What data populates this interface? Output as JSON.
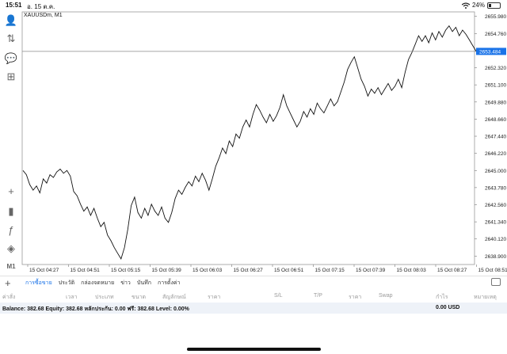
{
  "status_bar": {
    "time": "15:51",
    "date": "อ. 15 ต.ค.",
    "battery": "24%",
    "battery_level": 0.24
  },
  "left_toolbar": {
    "items": [
      {
        "name": "account-icon",
        "glyph": "👤"
      },
      {
        "name": "trade-icon",
        "glyph": "⇅"
      },
      {
        "name": "chat-icon",
        "glyph": "💬"
      },
      {
        "name": "add-document-icon",
        "glyph": "⊞"
      },
      {
        "name": "crosshair-icon",
        "glyph": "+"
      },
      {
        "name": "candlestick-icon",
        "glyph": "▮"
      },
      {
        "name": "indicator-icon",
        "glyph": "ƒ"
      },
      {
        "name": "objects-icon",
        "glyph": "◈"
      },
      {
        "name": "timeframe-button",
        "glyph": "M1"
      }
    ]
  },
  "chart": {
    "symbol_label": "XAUUSDm, M1",
    "current_price": "2653.484",
    "current_price_color": "#1a73e8",
    "line_color": "#111111",
    "grid": false
  },
  "chart_data": {
    "type": "line",
    "title": "XAUUSDm, M1",
    "xlabel": "",
    "ylabel": "",
    "x_ticks": [
      "15 Oct 04:27",
      "15 Oct 04:51",
      "15 Oct 05:15",
      "15 Oct 05:39",
      "15 Oct 06:03",
      "15 Oct 06:27",
      "15 Oct 06:51",
      "15 Oct 07:15",
      "15 Oct 07:39",
      "15 Oct 08:03",
      "15 Oct 08:27",
      "15 Oct 08:51"
    ],
    "y_ticks": [
      "2655.980",
      "2654.760",
      "2653.484",
      "2652.320",
      "2651.100",
      "2649.880",
      "2648.660",
      "2647.440",
      "2646.220",
      "2645.000",
      "2643.780",
      "2642.560",
      "2641.340",
      "2640.120",
      "2638.900"
    ],
    "ylim": [
      2638.3,
      2656.3
    ],
    "series": [
      {
        "values": [
          2645.0,
          2644.7,
          2644.0,
          2643.6,
          2643.9,
          2643.4,
          2644.4,
          2644.1,
          2644.7,
          2644.5,
          2644.9,
          2645.1,
          2644.8,
          2645.0,
          2644.6,
          2643.5,
          2643.2,
          2642.6,
          2642.1,
          2642.4,
          2641.8,
          2642.3,
          2641.6,
          2641.0,
          2641.3,
          2640.4,
          2640.0,
          2639.5,
          2639.1,
          2638.7,
          2639.5,
          2640.8,
          2642.5,
          2643.1,
          2642.0,
          2641.6,
          2642.3,
          2641.8,
          2642.6,
          2642.1,
          2641.8,
          2642.4,
          2641.6,
          2641.3,
          2642.0,
          2643.0,
          2643.6,
          2643.3,
          2643.8,
          2644.2,
          2643.9,
          2644.6,
          2644.2,
          2644.8,
          2644.3,
          2643.6,
          2644.4,
          2645.3,
          2645.9,
          2646.6,
          2646.2,
          2647.1,
          2646.7,
          2647.6,
          2647.3,
          2648.1,
          2648.6,
          2648.1,
          2649.0,
          2649.7,
          2649.3,
          2648.8,
          2648.4,
          2649.0,
          2648.5,
          2648.9,
          2649.5,
          2650.4,
          2649.6,
          2649.1,
          2648.6,
          2648.1,
          2648.5,
          2649.2,
          2648.8,
          2649.4,
          2649.0,
          2649.8,
          2649.4,
          2649.1,
          2649.6,
          2650.1,
          2649.6,
          2649.9,
          2650.6,
          2651.3,
          2652.2,
          2652.7,
          2653.1,
          2652.3,
          2651.5,
          2651.0,
          2650.3,
          2650.8,
          2650.5,
          2650.9,
          2650.4,
          2650.8,
          2651.2,
          2650.7,
          2651.0,
          2651.5,
          2650.9,
          2652.0,
          2652.9,
          2653.4,
          2654.0,
          2654.6,
          2654.2,
          2654.6,
          2654.1,
          2654.8,
          2654.3,
          2654.9,
          2654.5,
          2655.0,
          2655.3,
          2654.9,
          2655.2,
          2654.6,
          2655.0,
          2654.7,
          2654.3,
          2653.9,
          2653.5
        ]
      }
    ]
  },
  "bottom_panel": {
    "tabs": [
      {
        "label": "การซื้อขาย",
        "active": true
      },
      {
        "label": "ประวัติ",
        "active": false
      },
      {
        "label": "กล่องจดหมาย",
        "active": false
      },
      {
        "label": "ข่าว",
        "active": false
      },
      {
        "label": "บันทึก",
        "active": false
      },
      {
        "label": "การตั้งค่า",
        "active": false
      }
    ],
    "columns": [
      "ค่าสั่ง",
      "เวลา",
      "ประเภท",
      "ขนาด",
      "สัญลักษณ์",
      "ราคา",
      "S/L",
      "T/P",
      "ราคา",
      "Swap",
      "กำไร",
      "หมายเหตุ"
    ],
    "balance_line": "Balance: 382.68 Equity: 382.68 หลักประกัน: 0.00 ฟรี: 382.68 Level: 0.00%",
    "profit_total": "0.00  USD"
  }
}
